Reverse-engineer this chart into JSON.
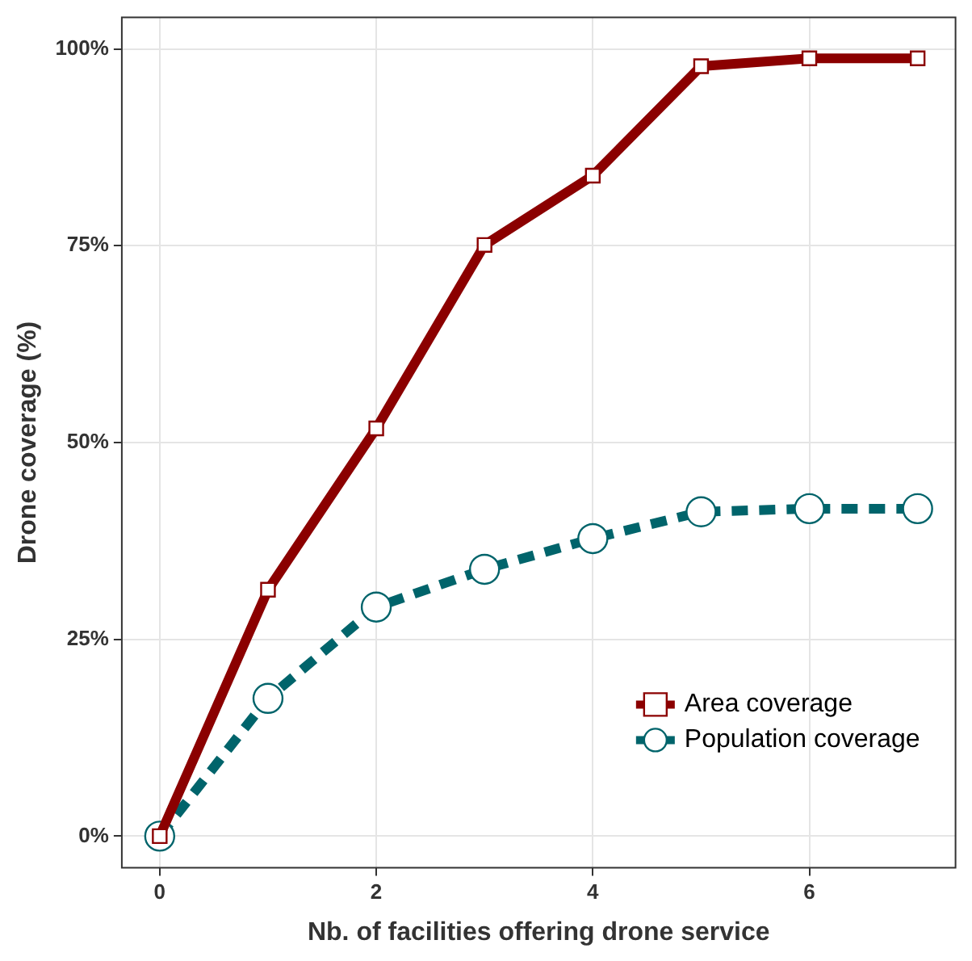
{
  "chart_data": {
    "type": "line",
    "xlabel": "Nb. of facilities offering drone service",
    "ylabel": "Drone coverage (%)",
    "x": [
      0,
      1,
      2,
      3,
      4,
      5,
      6,
      7
    ],
    "series": [
      {
        "name": "Area coverage",
        "color": "#8b0000",
        "values": [
          0,
          31.3,
          51.8,
          75.1,
          83.9,
          97.8,
          98.8,
          98.8
        ],
        "marker": "square",
        "line_style": "solid"
      },
      {
        "name": "Population coverage",
        "color": "#00646b",
        "values": [
          0,
          17.5,
          29.1,
          33.9,
          37.8,
          41.2,
          41.6,
          41.6
        ],
        "marker": "circle",
        "line_style": "dashed"
      }
    ],
    "xlim": [
      -0.35,
      7.35
    ],
    "xticks": [
      0,
      2,
      4,
      6
    ],
    "ylim": [
      -4,
      104
    ],
    "yticks": [
      {
        "value": 0,
        "label": "0%"
      },
      {
        "value": 25,
        "label": "25%"
      },
      {
        "value": 50,
        "label": "50%"
      },
      {
        "value": 75,
        "label": "75%"
      },
      {
        "value": 100,
        "label": "100%"
      }
    ],
    "grid": true,
    "legend": "bottom right"
  }
}
